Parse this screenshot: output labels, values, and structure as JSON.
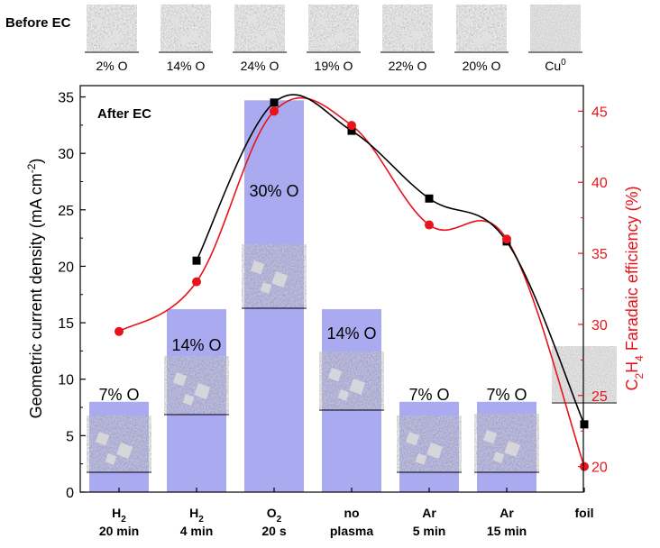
{
  "before_ec": {
    "label": "Before EC",
    "thumbnails": [
      {
        "label": "2% O"
      },
      {
        "label": "14% O"
      },
      {
        "label": "24% O"
      },
      {
        "label": "19% O"
      },
      {
        "label": "22% O"
      },
      {
        "label": "20% O"
      },
      {
        "label": "Cu",
        "superscript": "0"
      }
    ]
  },
  "chart_data": {
    "type": "bar",
    "annotation": "After EC",
    "categories": [
      {
        "line1": "H",
        "sub": "2",
        "line2": "20 min"
      },
      {
        "line1": "H",
        "sub": "2",
        "line2": "4 min"
      },
      {
        "line1": "O",
        "sub": "2",
        "line2": "20 s"
      },
      {
        "line1": "no",
        "sub": "",
        "line2": "plasma"
      },
      {
        "line1": "Ar",
        "sub": "",
        "line2": "5 min"
      },
      {
        "line1": "Ar",
        "sub": "",
        "line2": "15 min"
      },
      {
        "line1": "foil",
        "sub": "",
        "line2": ""
      }
    ],
    "bars": {
      "values": [
        8.0,
        16.2,
        34.7,
        16.2,
        8.0,
        8.0,
        null
      ],
      "labels": [
        "7% O",
        "14% O",
        "30% O",
        "14% O",
        "7% O",
        "7% O",
        ""
      ],
      "color": "#aaaaf0"
    },
    "current_density": {
      "axis": "left",
      "color": "#000000",
      "values": [
        null,
        20.5,
        34.5,
        32.0,
        26.0,
        22.2,
        6.0
      ]
    },
    "faradaic_efficiency": {
      "axis": "right",
      "color": "#e8141b",
      "values": [
        29.5,
        33.0,
        45.0,
        44.0,
        37.0,
        36.0,
        20.0
      ]
    },
    "ylabel": "Geometric current density (mA cm",
    "ylabel_sup": "-2",
    "ylabel_close": ")",
    "ylim": [
      0,
      36
    ],
    "yticks": [
      0,
      5,
      10,
      15,
      20,
      25,
      30,
      35
    ],
    "y2label_parts": [
      "C",
      "2",
      "H",
      "4",
      " Faradaic efficiency (%)"
    ],
    "y2lim": [
      18.2,
      46.8
    ],
    "y2ticks": [
      20,
      25,
      30,
      35,
      40,
      45
    ]
  }
}
